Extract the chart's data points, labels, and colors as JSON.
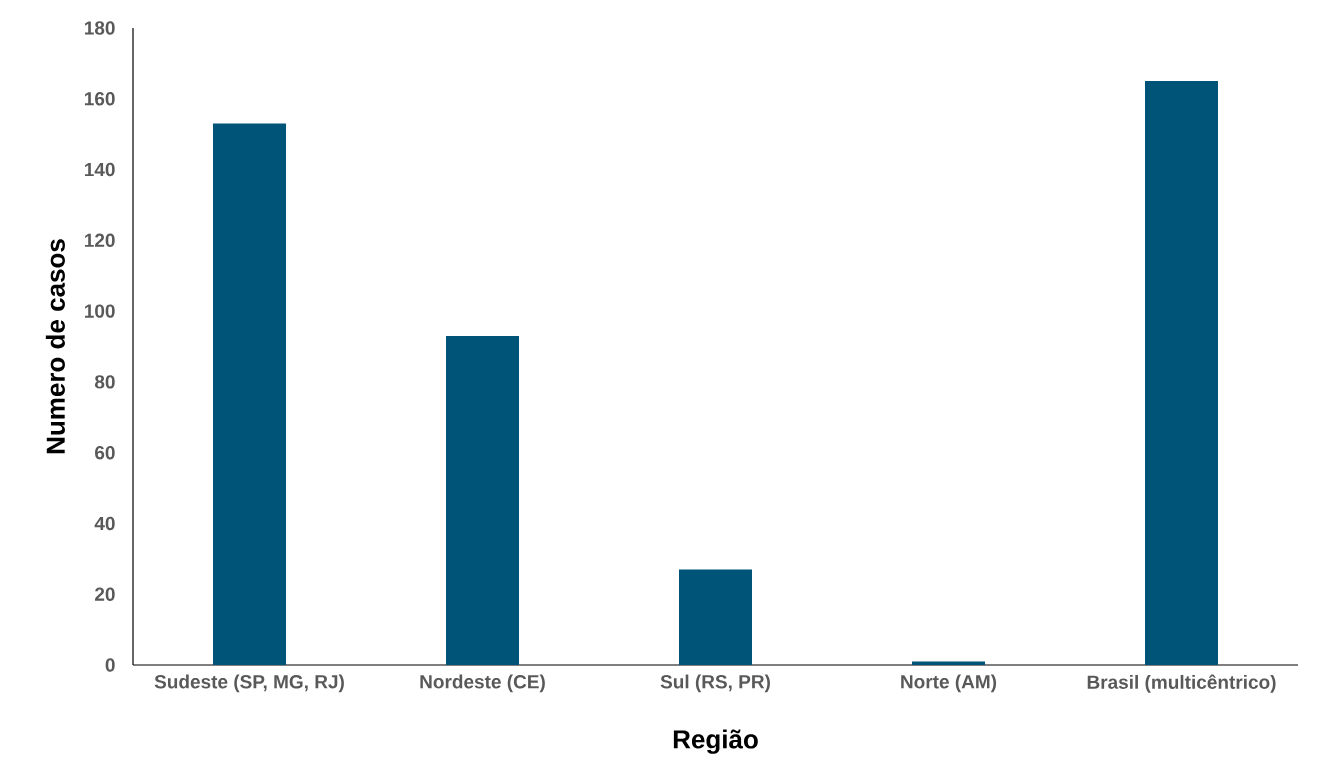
{
  "chart_data": {
    "type": "bar",
    "xlabel": "Região",
    "ylabel": "Numero de casos",
    "categories": [
      "Sudeste (SP, MG, RJ)",
      "Nordeste (CE)",
      "Sul (RS, PR)",
      "Norte (AM)",
      "Brasil (multicêntrico)"
    ],
    "values": [
      153,
      93,
      27,
      1,
      165
    ],
    "color": "#005478",
    "ylim": [
      0,
      180
    ],
    "yticks": [
      0,
      20,
      40,
      60,
      80,
      100,
      120,
      140,
      160,
      180
    ],
    "grid": false
  }
}
